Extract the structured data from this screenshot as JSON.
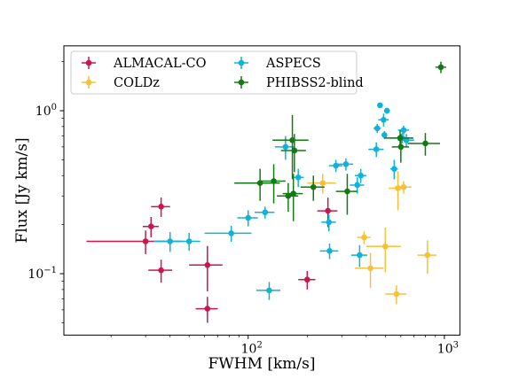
{
  "chart_data": {
    "type": "scatter",
    "x_scale": "log",
    "y_scale": "log",
    "xlabel": "FWHM [km/s]",
    "ylabel": "Flux [Jy km/s]",
    "xlim": [
      11.5,
      1200
    ],
    "ylim": [
      0.042,
      2.5
    ],
    "x_major_ticks": [
      {
        "base": "10",
        "exp": "2",
        "value": 100
      },
      {
        "base": "10",
        "exp": "3",
        "value": 1000
      }
    ],
    "y_major_ticks": [
      {
        "base": "10",
        "exp": "−1",
        "value": 0.1
      },
      {
        "base": "10",
        "exp": "0",
        "value": 1
      }
    ],
    "grid": false,
    "legend": {
      "location": "upper-left",
      "columns": 2
    },
    "series": [
      {
        "name": "ALMACAL-CO",
        "color": "#c8174d",
        "points": [
          {
            "x": 30,
            "y": 0.158,
            "xerr": [
              15,
              15
            ],
            "yerr": [
              0.026,
              0.026
            ]
          },
          {
            "x": 32,
            "y": 0.195,
            "xerr": [
              3,
              3
            ],
            "yerr": [
              0.028,
              0.028
            ]
          },
          {
            "x": 36,
            "y": 0.258,
            "xerr": [
              4,
              4
            ],
            "yerr": [
              0.035,
              0.035
            ]
          },
          {
            "x": 36,
            "y": 0.105,
            "xerr": [
              5,
              5
            ],
            "yerr": [
              0.017,
              0.017
            ]
          },
          {
            "x": 62,
            "y": 0.113,
            "xerr": [
              12,
              12
            ],
            "yerr": [
              0.035,
              0.035
            ]
          },
          {
            "x": 62,
            "y": 0.061,
            "xerr": [
              8,
              8
            ],
            "yerr": [
              0.011,
              0.011
            ]
          },
          {
            "x": 200,
            "y": 0.092,
            "xerr": [
              20,
              20
            ],
            "yerr": [
              0.012,
              0.012
            ]
          },
          {
            "x": 255,
            "y": 0.243,
            "xerr": [
              30,
              30
            ],
            "yerr": [
              0.05,
              0.05
            ]
          }
        ]
      },
      {
        "name": "COLDz",
        "color": "#f7c03a",
        "points": [
          {
            "x": 240,
            "y": 0.36,
            "xerr": [
              40,
              40
            ],
            "yerr": [
              0.05,
              0.05
            ]
          },
          {
            "x": 390,
            "y": 0.167,
            "xerr": [
              30,
              30
            ],
            "yerr": [
              0.015,
              0.015
            ]
          },
          {
            "x": 420,
            "y": 0.108,
            "xerr": [
              70,
              70
            ],
            "yerr": [
              0.026,
              0.026
            ]
          },
          {
            "x": 500,
            "y": 0.147,
            "xerr": [
              100,
              100
            ],
            "yerr": [
              0.045,
              0.045
            ]
          },
          {
            "x": 570,
            "y": 0.075,
            "xerr": [
              70,
              70
            ],
            "yerr": [
              0.01,
              0.01
            ]
          },
          {
            "x": 580,
            "y": 0.335,
            "xerr": [
              60,
              60
            ],
            "yerr": [
              0.09,
              0.09
            ]
          },
          {
            "x": 620,
            "y": 0.34,
            "xerr": [
              60,
              60
            ],
            "yerr": [
              0.03,
              0.03
            ]
          },
          {
            "x": 820,
            "y": 0.13,
            "xerr": [
              90,
              90
            ],
            "yerr": [
              0.03,
              0.03
            ]
          }
        ]
      },
      {
        "name": "ASPECS",
        "color": "#12b1d6",
        "points": [
          {
            "x": 40,
            "y": 0.158,
            "xerr": [
              7,
              7
            ],
            "yerr": [
              0.022,
              0.022
            ]
          },
          {
            "x": 50,
            "y": 0.158,
            "xerr": [
              7,
              7
            ],
            "yerr": [
              0.02,
              0.02
            ]
          },
          {
            "x": 82,
            "y": 0.177,
            "xerr": [
              22,
              22
            ],
            "yerr": [
              0.02,
              0.02
            ]
          },
          {
            "x": 100,
            "y": 0.22,
            "xerr": [
              12,
              12
            ],
            "yerr": [
              0.025,
              0.025
            ]
          },
          {
            "x": 122,
            "y": 0.238,
            "xerr": [
              14,
              14
            ],
            "yerr": [
              0.02,
              0.02
            ]
          },
          {
            "x": 128,
            "y": 0.079,
            "xerr": [
              18,
              18
            ],
            "yerr": [
              0.01,
              0.01
            ]
          },
          {
            "x": 155,
            "y": 0.6,
            "xerr": [
              18,
              18
            ],
            "yerr": [
              0.1,
              0.1
            ]
          },
          {
            "x": 180,
            "y": 0.39,
            "xerr": [
              12,
              12
            ],
            "yerr": [
              0.05,
              0.05
            ]
          },
          {
            "x": 258,
            "y": 0.207,
            "xerr": [
              22,
              22
            ],
            "yerr": [
              0.025,
              0.025
            ]
          },
          {
            "x": 260,
            "y": 0.138,
            "xerr": [
              28,
              28
            ],
            "yerr": [
              0.015,
              0.015
            ]
          },
          {
            "x": 280,
            "y": 0.46,
            "xerr": [
              22,
              22
            ],
            "yerr": [
              0.04,
              0.04
            ]
          },
          {
            "x": 315,
            "y": 0.47,
            "xerr": [
              28,
              28
            ],
            "yerr": [
              0.04,
              0.04
            ]
          },
          {
            "x": 360,
            "y": 0.35,
            "xerr": [
              30,
              30
            ],
            "yerr": [
              0.04,
              0.04
            ]
          },
          {
            "x": 370,
            "y": 0.13,
            "xerr": [
              35,
              35
            ],
            "yerr": [
              0.02,
              0.02
            ]
          },
          {
            "x": 375,
            "y": 0.4,
            "xerr": [
              25,
              25
            ],
            "yerr": [
              0.04,
              0.04
            ]
          },
          {
            "x": 450,
            "y": 0.58,
            "xerr": [
              40,
              40
            ],
            "yerr": [
              0.06,
              0.06
            ]
          },
          {
            "x": 455,
            "y": 0.78,
            "xerr": [
              20,
              20
            ],
            "yerr": [
              0.05,
              0.05
            ]
          },
          {
            "x": 470,
            "y": 1.08,
            "xerr": [
              10,
              10
            ],
            "yerr": [
              0.04,
              0.04
            ]
          },
          {
            "x": 490,
            "y": 0.88,
            "xerr": [
              30,
              30
            ],
            "yerr": [
              0.08,
              0.08
            ]
          },
          {
            "x": 495,
            "y": 0.71,
            "xerr": [
              15,
              15
            ],
            "yerr": [
              0.04,
              0.04
            ]
          },
          {
            "x": 510,
            "y": 1.0,
            "xerr": [
              10,
              10
            ],
            "yerr": [
              0.04,
              0.04
            ]
          },
          {
            "x": 555,
            "y": 0.44,
            "xerr": [
              25,
              25
            ],
            "yerr": [
              0.06,
              0.06
            ]
          },
          {
            "x": 610,
            "y": 0.68,
            "xerr": [
              80,
              80
            ],
            "yerr": [
              0.05,
              0.05
            ]
          },
          {
            "x": 620,
            "y": 0.76,
            "xerr": [
              40,
              40
            ],
            "yerr": [
              0.05,
              0.05
            ]
          },
          {
            "x": 640,
            "y": 0.66,
            "xerr": [
              60,
              60
            ],
            "yerr": [
              0.06,
              0.06
            ]
          }
        ]
      },
      {
        "name": "PHIBSS2-blind",
        "color": "#137a13",
        "points": [
          {
            "x": 115,
            "y": 0.36,
            "xerr": [
              30,
              30
            ],
            "yerr": [
              0.08,
              0.08
            ]
          },
          {
            "x": 135,
            "y": 0.37,
            "xerr": [
              20,
              20
            ],
            "yerr": [
              0.1,
              0.1
            ]
          },
          {
            "x": 160,
            "y": 0.3,
            "xerr": [
              20,
              20
            ],
            "yerr": [
              0.06,
              0.06
            ]
          },
          {
            "x": 168,
            "y": 0.66,
            "xerr": [
              35,
              35
            ],
            "yerr": [
              0.28,
              0.28
            ]
          },
          {
            "x": 170,
            "y": 0.31,
            "xerr": [
              20,
              20
            ],
            "yerr": [
              0.1,
              0.1
            ]
          },
          {
            "x": 172,
            "y": 0.57,
            "xerr": [
              25,
              25
            ],
            "yerr": [
              0.15,
              0.15
            ]
          },
          {
            "x": 215,
            "y": 0.34,
            "xerr": [
              30,
              30
            ],
            "yerr": [
              0.06,
              0.06
            ]
          },
          {
            "x": 320,
            "y": 0.32,
            "xerr": [
              40,
              40
            ],
            "yerr": [
              0.09,
              0.09
            ]
          },
          {
            "x": 595,
            "y": 0.68,
            "xerr": [
              100,
              100
            ],
            "yerr": [
              0.08,
              0.08
            ]
          },
          {
            "x": 600,
            "y": 0.6,
            "xerr": [
              60,
              60
            ],
            "yerr": [
              0.12,
              0.12
            ]
          },
          {
            "x": 800,
            "y": 0.63,
            "xerr": [
              150,
              150
            ],
            "yerr": [
              0.1,
              0.1
            ]
          },
          {
            "x": 960,
            "y": 1.85,
            "xerr": [
              60,
              60
            ],
            "yerr": [
              0.15,
              0.15
            ]
          }
        ]
      }
    ]
  }
}
